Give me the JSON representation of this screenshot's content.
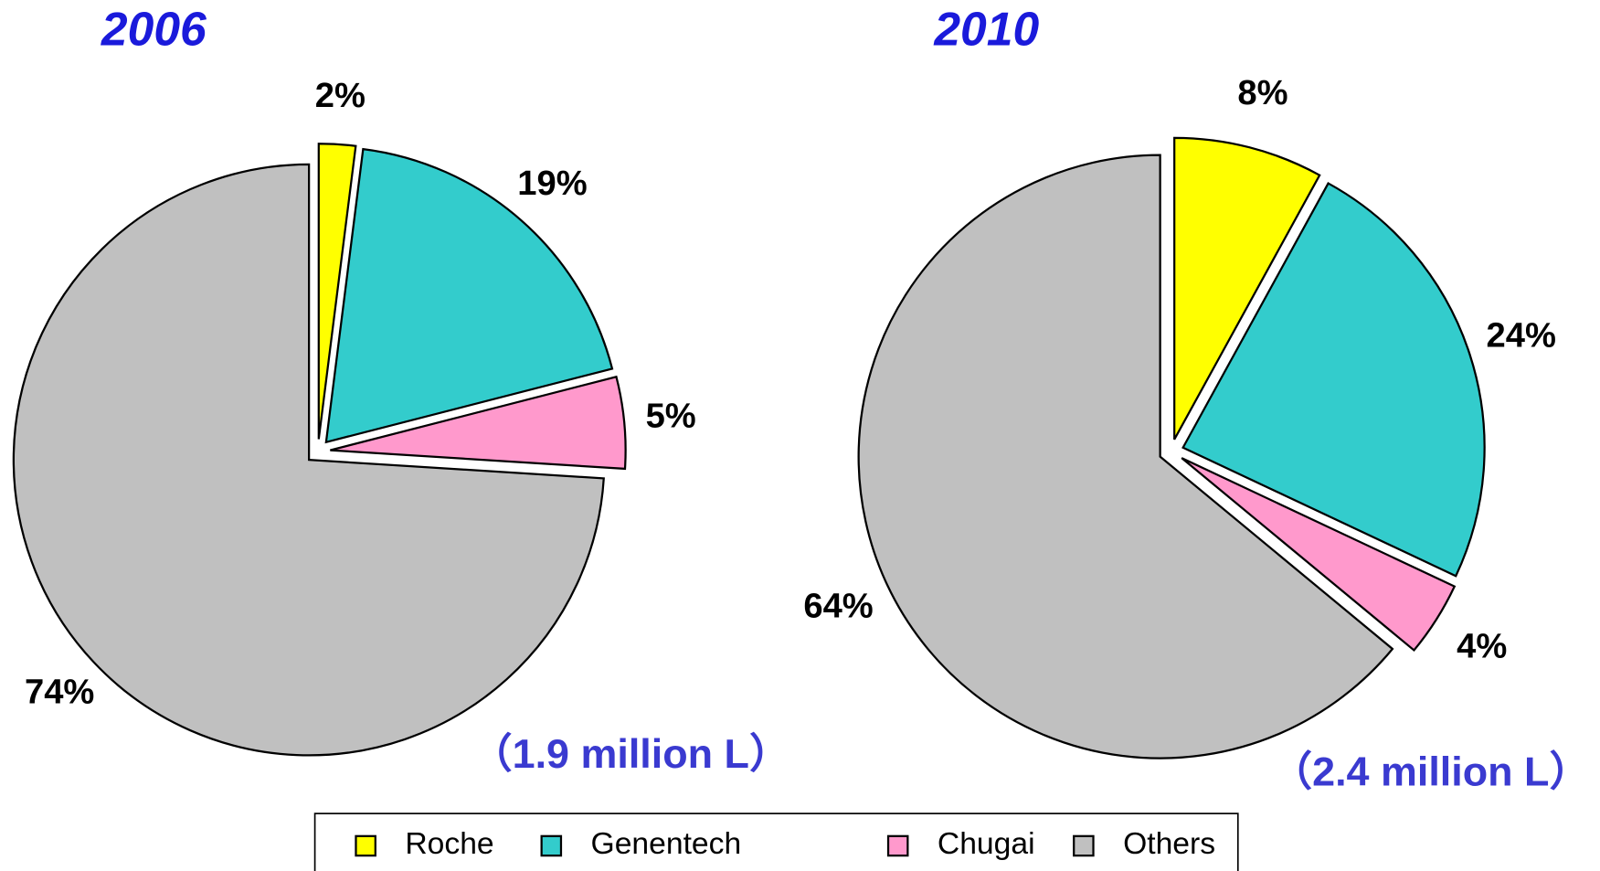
{
  "chart_data": [
    {
      "type": "pie",
      "title": "2006",
      "subtitle": "（1.9 million L）",
      "categories": [
        "Roche",
        "Genentech",
        "Chugai",
        "Others"
      ],
      "values": [
        2,
        19,
        5,
        74
      ],
      "value_labels": [
        "2%",
        "19%",
        "5%",
        "74%"
      ],
      "colors": [
        "#ffff00",
        "#33cccc",
        "#ff99cc",
        "#c0c0c0"
      ]
    },
    {
      "type": "pie",
      "title": "2010",
      "subtitle": "（2.4 million L）",
      "categories": [
        "Roche",
        "Genentech",
        "Chugai",
        "Others"
      ],
      "values": [
        8,
        24,
        4,
        64
      ],
      "value_labels": [
        "8%",
        "24%",
        "4%",
        "64%"
      ],
      "colors": [
        "#ffff00",
        "#33cccc",
        "#ff99cc",
        "#c0c0c0"
      ]
    }
  ]
}
